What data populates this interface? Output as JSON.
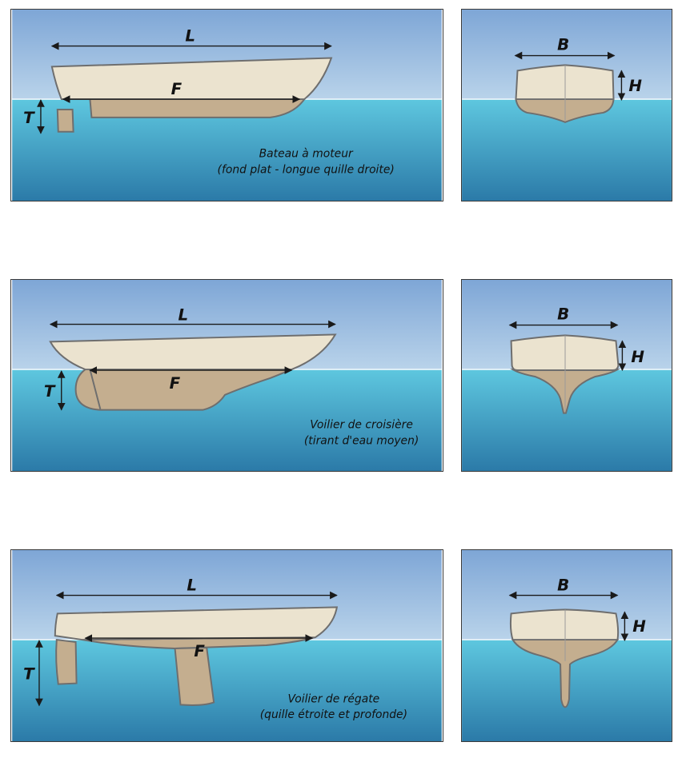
{
  "colors": {
    "sky_top": "#7ea6d6",
    "sky_bottom": "#b9d3ea",
    "water_top": "#5ec7df",
    "water_bottom": "#2b7aa8",
    "hull_above": "#ebe3cf",
    "hull_below": "#c4ae8f",
    "outline": "#6e6e6e"
  },
  "rows": [
    {
      "side": {
        "label_L": "L",
        "label_F": "F",
        "label_T": "T",
        "caption_line1": "Bateau à moteur",
        "caption_line2": "(fond plat - longue quille droite)"
      },
      "section": {
        "label_B": "B",
        "label_H": "H"
      }
    },
    {
      "side": {
        "label_L": "L",
        "label_F": "F",
        "label_T": "T",
        "caption_line1": "Voilier de croisière",
        "caption_line2": "(tirant d'eau moyen)"
      },
      "section": {
        "label_B": "B",
        "label_H": "H"
      }
    },
    {
      "side": {
        "label_L": "L",
        "label_F": "F",
        "label_T": "T",
        "caption_line1": "Voilier de régate",
        "caption_line2": "(quille étroite et profonde)"
      },
      "section": {
        "label_B": "B",
        "label_H": "H"
      }
    }
  ]
}
